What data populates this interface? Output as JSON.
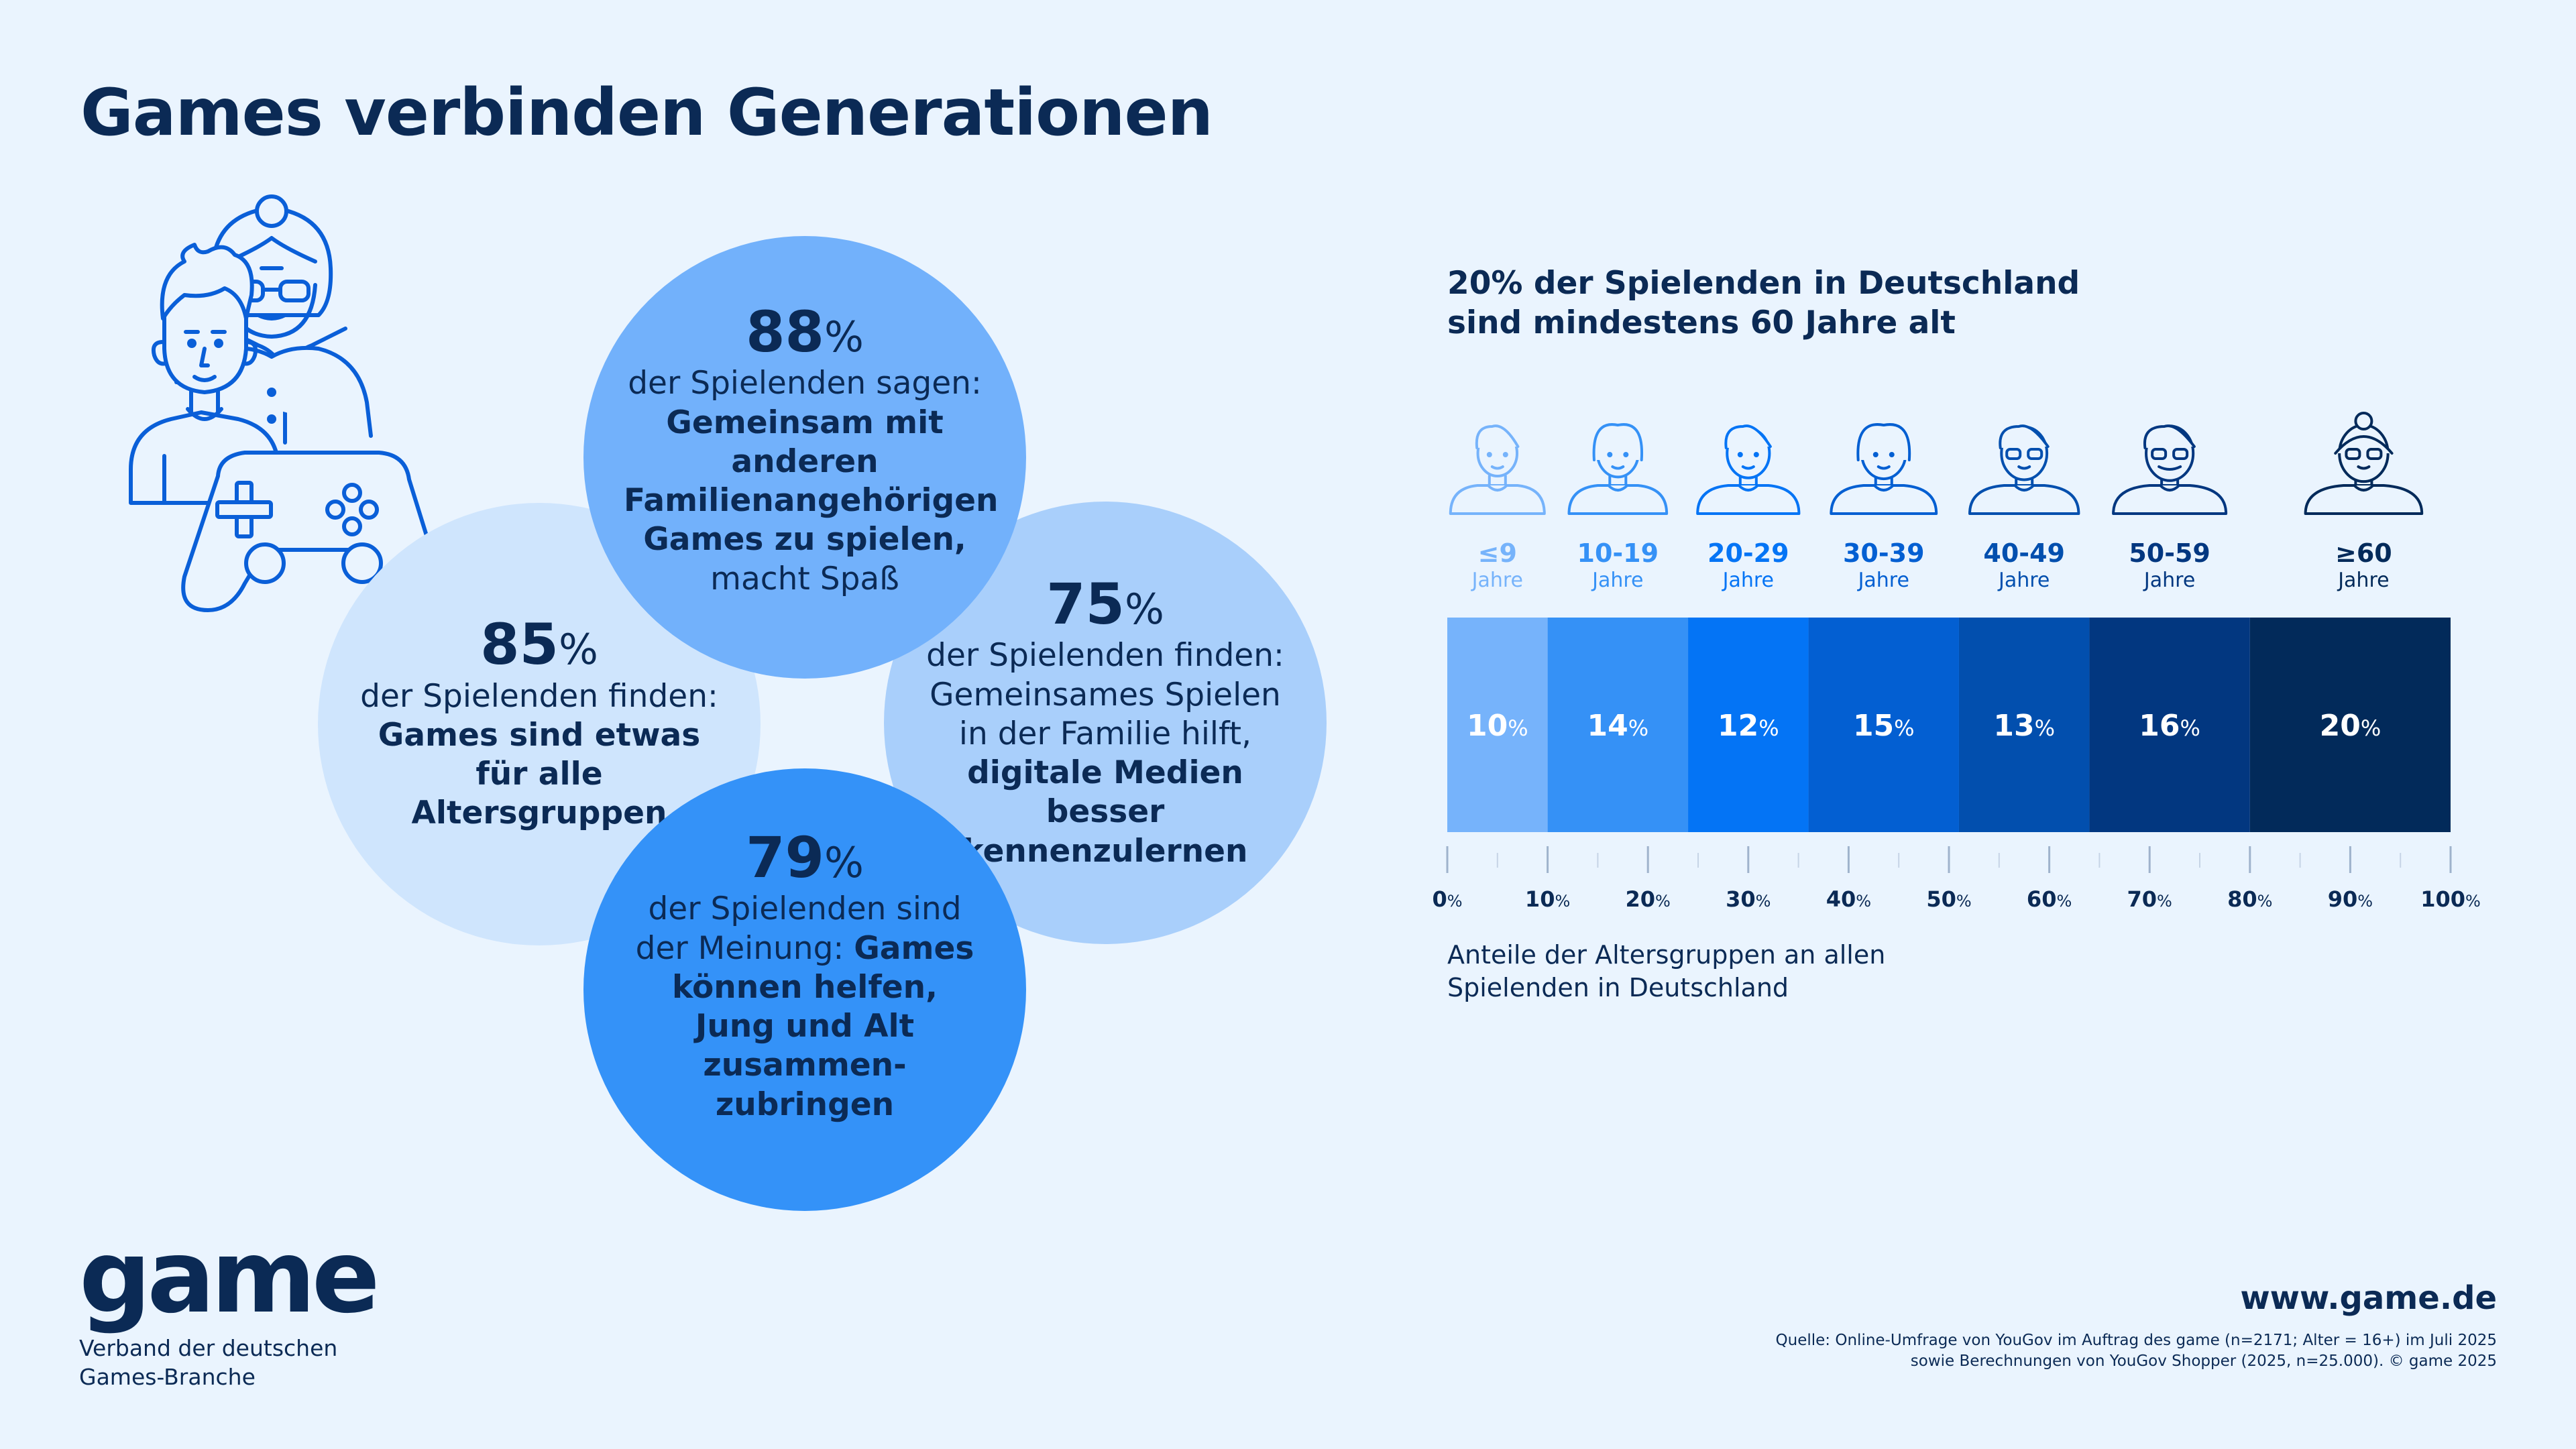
{
  "title": "Games verbinden Generationen",
  "circles": {
    "c88": {
      "pct": "88",
      "sym": "%",
      "text_plain": "der Spielenden sagen: ",
      "text_bold": "Gemeinsam mit anderen Familienangehörigen Games zu spielen,",
      "text_tail": " macht Spaß"
    },
    "c85": {
      "pct": "85",
      "sym": "%",
      "text_plain": "der Spielenden finden: ",
      "text_bold": "Games sind etwas für alle Altersgruppen",
      "text_tail": ""
    },
    "c75": {
      "pct": "75",
      "sym": "%",
      "text_plain": "der Spielenden finden: Gemeinsames Spielen in der Familie hilft, ",
      "text_bold": "digitale Medien besser kennenzulernen",
      "text_tail": ""
    },
    "c79": {
      "pct": "79",
      "sym": "%",
      "text_plain": "der Spielenden sind der Meinung: ",
      "text_bold": "Games können helfen, Jung und Alt zusammen-zubringen",
      "text_tail": ""
    }
  },
  "chart_title": {
    "line1": "20% der Spielenden in Deutschland",
    "line2": "sind mindestens 60 Jahre alt"
  },
  "chart_data": {
    "type": "bar",
    "stacked": true,
    "orientation": "horizontal",
    "unit_label": "Jahre",
    "categories": [
      "≤9",
      "10-19",
      "20-29",
      "30-39",
      "40-49",
      "50-59",
      "≥60"
    ],
    "values": [
      10,
      14,
      12,
      15,
      13,
      16,
      20
    ],
    "value_labels": [
      "10",
      "14",
      "12",
      "15",
      "13",
      "16",
      "20"
    ],
    "value_suffix": "%",
    "colors": [
      "#76b3fb",
      "#3591f6",
      "#0474f5",
      "#035fd2",
      "#024fae",
      "#023780",
      "#022a5a"
    ],
    "label_colors": [
      "#76b3fb",
      "#3591f6",
      "#0474f5",
      "#035fd2",
      "#024fae",
      "#023780",
      "#022a5a"
    ],
    "xlim": [
      0,
      100
    ],
    "xticks": [
      0,
      10,
      20,
      30,
      40,
      50,
      60,
      70,
      80,
      90,
      100
    ],
    "xtick_labels": [
      "0",
      "10",
      "20",
      "30",
      "40",
      "50",
      "60",
      "70",
      "80",
      "90",
      "100"
    ],
    "xtick_suffix": "%",
    "xlabel": "Anteile der Altersgruppen an allen Spielenden in Deutschland",
    "grid": false,
    "legend": "none"
  },
  "chart_note": {
    "line1": "Anteile der Altersgruppen an allen",
    "line2": "Spielenden in Deutschland"
  },
  "logo": {
    "word": "game",
    "line1": "Verband der deutschen",
    "line2": "Games-Branche"
  },
  "footer": {
    "url": "www.game.de",
    "source_line1": "Quelle: Online-Umfrage von YouGov im Auftrag des game (n=2171; Alter = 16+) im Juli 2025",
    "source_line2": "sowie Berechnungen von YouGov Shopper (2025, n=25.000). © game 2025"
  },
  "icon_names": [
    "teen-icon",
    "grandmother-icon",
    "gamepad-icon",
    "child-icon",
    "girl-icon",
    "young-man-icon",
    "woman-icon",
    "man-glasses-icon",
    "man-beard-icon",
    "senior-woman-icon"
  ]
}
